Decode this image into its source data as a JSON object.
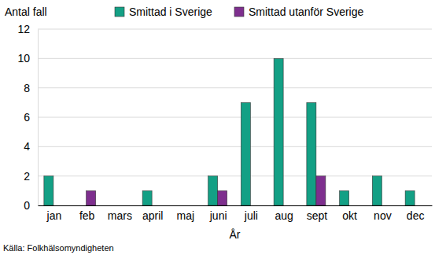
{
  "chart_data": {
    "type": "bar",
    "y_label": "Antal fall",
    "x_label": "År",
    "source": "Källa: Folkhälsomyndigheten",
    "categories": [
      "jan",
      "feb",
      "mars",
      "april",
      "maj",
      "juni",
      "juli",
      "aug",
      "sept",
      "okt",
      "nov",
      "dec"
    ],
    "series": [
      {
        "name": "Smittad i Sverige",
        "color": "#13a085",
        "values": [
          2,
          0,
          0,
          1,
          0,
          2,
          7,
          10,
          7,
          1,
          2,
          1
        ]
      },
      {
        "name": "Smittad utanför Sverige",
        "color": "#7e2f8e",
        "values": [
          0,
          1,
          0,
          0,
          0,
          1,
          0,
          0,
          2,
          0,
          0,
          0
        ]
      }
    ],
    "ylim": [
      0,
      12
    ],
    "yticks": [
      0,
      2,
      4,
      6,
      8,
      10,
      12
    ],
    "grid": true,
    "legend": "top"
  }
}
